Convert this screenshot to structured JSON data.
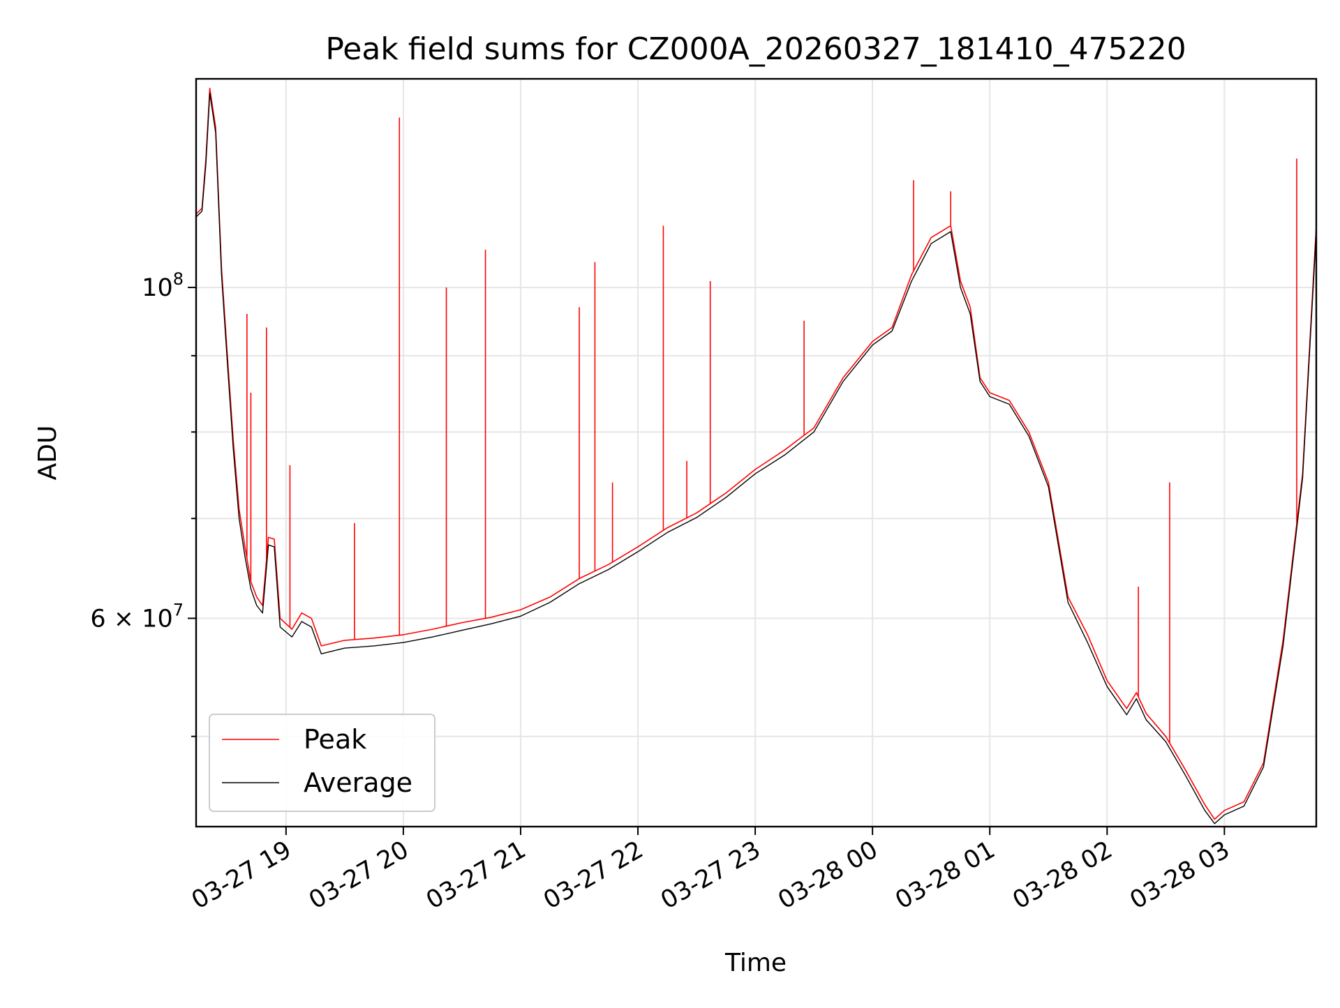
{
  "chart_data": {
    "type": "line",
    "title": "Peak field sums for CZ000A_20260327_181410_475220",
    "xlabel": "Time",
    "ylabel": "ADU",
    "y_scale": "log",
    "ylim": [
      43500000,
      138000000
    ],
    "xlim": [
      "2026-03-27 18:14",
      "2026-03-28 03:47"
    ],
    "grid": true,
    "legend_position": "lower-left",
    "x_ticks": [
      {
        "time": "2026-03-27 19:00",
        "label": "03-27 19"
      },
      {
        "time": "2026-03-27 20:00",
        "label": "03-27 20"
      },
      {
        "time": "2026-03-27 21:00",
        "label": "03-27 21"
      },
      {
        "time": "2026-03-27 22:00",
        "label": "03-27 22"
      },
      {
        "time": "2026-03-27 23:00",
        "label": "03-27 23"
      },
      {
        "time": "2026-03-28 00:00",
        "label": "03-28 00"
      },
      {
        "time": "2026-03-28 01:00",
        "label": "03-28 01"
      },
      {
        "time": "2026-03-28 02:00",
        "label": "03-28 02"
      },
      {
        "time": "2026-03-28 03:00",
        "label": "03-28 03"
      }
    ],
    "y_major_ticks": [
      {
        "value": 60000000,
        "base": "6 × 10",
        "exp": "7"
      },
      {
        "value": 100000000,
        "base": "10",
        "exp": "8"
      }
    ],
    "y_minor_ticks": [
      50000000,
      70000000,
      80000000,
      90000000
    ],
    "series": [
      {
        "name": "Peak",
        "color": "#ff0000",
        "points": [
          [
            "2026-03-27 18:14",
            112000000
          ],
          [
            "2026-03-27 18:17",
            113000000
          ],
          [
            "2026-03-27 18:19",
            122000000
          ],
          [
            "2026-03-27 18:21",
            136000000
          ],
          [
            "2026-03-27 18:24",
            128000000
          ],
          [
            "2026-03-27 18:27",
            103000000
          ],
          [
            "2026-03-27 18:30",
            90000000
          ],
          [
            "2026-03-27 18:33",
            79000000
          ],
          [
            "2026-03-27 18:36",
            71000000
          ],
          [
            "2026-03-27 18:39",
            67000000
          ],
          [
            "2026-03-27 18:42",
            63500000
          ],
          [
            "2026-03-27 18:45",
            62000000
          ],
          [
            "2026-03-27 18:48",
            61200000
          ],
          [
            "2026-03-27 18:51",
            68000000
          ],
          [
            "2026-03-27 18:54",
            67800000
          ],
          [
            "2026-03-27 18:57",
            60000000
          ],
          [
            "2026-03-27 19:03",
            59000000
          ],
          [
            "2026-03-27 19:08",
            60500000
          ],
          [
            "2026-03-27 19:13",
            60000000
          ],
          [
            "2026-03-27 19:18",
            57500000
          ],
          [
            "2026-03-27 19:30",
            58000000
          ],
          [
            "2026-03-27 19:45",
            58200000
          ],
          [
            "2026-03-27 20:00",
            58500000
          ],
          [
            "2026-03-27 20:15",
            59000000
          ],
          [
            "2026-03-27 20:30",
            59600000
          ],
          [
            "2026-03-27 20:45",
            60100000
          ],
          [
            "2026-03-27 21:00",
            60800000
          ],
          [
            "2026-03-27 21:15",
            62000000
          ],
          [
            "2026-03-27 21:30",
            63800000
          ],
          [
            "2026-03-27 21:45",
            65200000
          ],
          [
            "2026-03-27 22:00",
            67000000
          ],
          [
            "2026-03-27 22:15",
            69000000
          ],
          [
            "2026-03-27 22:30",
            70600000
          ],
          [
            "2026-03-27 22:45",
            72800000
          ],
          [
            "2026-03-27 23:00",
            75500000
          ],
          [
            "2026-03-27 23:15",
            77800000
          ],
          [
            "2026-03-27 23:30",
            80500000
          ],
          [
            "2026-03-27 23:45",
            87000000
          ],
          [
            "2026-03-28 00:00",
            92000000
          ],
          [
            "2026-03-28 00:10",
            94000000
          ],
          [
            "2026-03-28 00:20",
            102000000
          ],
          [
            "2026-03-28 00:30",
            108000000
          ],
          [
            "2026-03-28 00:40",
            110000000
          ],
          [
            "2026-03-28 00:45",
            101000000
          ],
          [
            "2026-03-28 00:50",
            97000000
          ],
          [
            "2026-03-28 00:55",
            87000000
          ],
          [
            "2026-03-28 01:00",
            85000000
          ],
          [
            "2026-03-28 01:10",
            84000000
          ],
          [
            "2026-03-28 01:20",
            80000000
          ],
          [
            "2026-03-28 01:30",
            74000000
          ],
          [
            "2026-03-28 01:40",
            62000000
          ],
          [
            "2026-03-28 01:50",
            58500000
          ],
          [
            "2026-03-28 02:00",
            54500000
          ],
          [
            "2026-03-28 02:10",
            52200000
          ],
          [
            "2026-03-28 02:15",
            53500000
          ],
          [
            "2026-03-28 02:20",
            51800000
          ],
          [
            "2026-03-28 02:30",
            50000000
          ],
          [
            "2026-03-28 02:40",
            47500000
          ],
          [
            "2026-03-28 02:50",
            45000000
          ],
          [
            "2026-03-28 02:55",
            44000000
          ],
          [
            "2026-03-28 03:00",
            44600000
          ],
          [
            "2026-03-28 03:10",
            45200000
          ],
          [
            "2026-03-28 03:20",
            48000000
          ],
          [
            "2026-03-28 03:30",
            58000000
          ],
          [
            "2026-03-28 03:40",
            75000000
          ],
          [
            "2026-03-28 03:47",
            110000000
          ]
        ],
        "spikes": [
          [
            "2026-03-27 18:40",
            96000000
          ],
          [
            "2026-03-27 18:42",
            85000000
          ],
          [
            "2026-03-27 18:50",
            94000000
          ],
          [
            "2026-03-27 19:02",
            76000000
          ],
          [
            "2026-03-27 19:35",
            69500000
          ],
          [
            "2026-03-27 19:58",
            130000000
          ],
          [
            "2026-03-27 20:22",
            100000000
          ],
          [
            "2026-03-27 20:42",
            106000000
          ],
          [
            "2026-03-27 21:30",
            97000000
          ],
          [
            "2026-03-27 21:38",
            104000000
          ],
          [
            "2026-03-27 21:47",
            74000000
          ],
          [
            "2026-03-27 22:13",
            110000000
          ],
          [
            "2026-03-27 22:25",
            76500000
          ],
          [
            "2026-03-27 22:37",
            101000000
          ],
          [
            "2026-03-27 23:25",
            95000000
          ],
          [
            "2026-03-28 00:21",
            118000000
          ],
          [
            "2026-03-28 00:40",
            116000000
          ],
          [
            "2026-03-28 02:16",
            63000000
          ],
          [
            "2026-03-28 02:32",
            74000000
          ],
          [
            "2026-03-28 03:37",
            122000000
          ]
        ]
      },
      {
        "name": "Average",
        "color": "#000000",
        "points": [
          [
            "2026-03-27 18:14",
            111500000
          ],
          [
            "2026-03-27 18:17",
            112500000
          ],
          [
            "2026-03-27 18:19",
            121000000
          ],
          [
            "2026-03-27 18:21",
            135000000
          ],
          [
            "2026-03-27 18:24",
            127000000
          ],
          [
            "2026-03-27 18:27",
            102000000
          ],
          [
            "2026-03-27 18:30",
            89000000
          ],
          [
            "2026-03-27 18:33",
            78000000
          ],
          [
            "2026-03-27 18:36",
            70000000
          ],
          [
            "2026-03-27 18:39",
            66000000
          ],
          [
            "2026-03-27 18:42",
            62800000
          ],
          [
            "2026-03-27 18:45",
            61200000
          ],
          [
            "2026-03-27 18:48",
            60500000
          ],
          [
            "2026-03-27 18:51",
            67200000
          ],
          [
            "2026-03-27 18:54",
            67000000
          ],
          [
            "2026-03-27 18:57",
            59200000
          ],
          [
            "2026-03-27 19:03",
            58300000
          ],
          [
            "2026-03-27 19:08",
            59700000
          ],
          [
            "2026-03-27 19:13",
            59200000
          ],
          [
            "2026-03-27 19:18",
            56800000
          ],
          [
            "2026-03-27 19:30",
            57300000
          ],
          [
            "2026-03-27 19:45",
            57500000
          ],
          [
            "2026-03-27 20:00",
            57800000
          ],
          [
            "2026-03-27 20:15",
            58300000
          ],
          [
            "2026-03-27 20:30",
            58900000
          ],
          [
            "2026-03-27 20:45",
            59500000
          ],
          [
            "2026-03-27 21:00",
            60200000
          ],
          [
            "2026-03-27 21:15",
            61500000
          ],
          [
            "2026-03-27 21:30",
            63300000
          ],
          [
            "2026-03-27 21:45",
            64700000
          ],
          [
            "2026-03-27 22:00",
            66500000
          ],
          [
            "2026-03-27 22:15",
            68500000
          ],
          [
            "2026-03-27 22:30",
            70100000
          ],
          [
            "2026-03-27 22:45",
            72300000
          ],
          [
            "2026-03-27 23:00",
            75000000
          ],
          [
            "2026-03-27 23:15",
            77200000
          ],
          [
            "2026-03-27 23:30",
            80000000
          ],
          [
            "2026-03-27 23:45",
            86500000
          ],
          [
            "2026-03-28 00:00",
            91500000
          ],
          [
            "2026-03-28 00:10",
            93500000
          ],
          [
            "2026-03-28 00:20",
            101000000
          ],
          [
            "2026-03-28 00:30",
            107000000
          ],
          [
            "2026-03-28 00:40",
            109000000
          ],
          [
            "2026-03-28 00:45",
            100000000
          ],
          [
            "2026-03-28 00:50",
            96000000
          ],
          [
            "2026-03-28 00:55",
            86500000
          ],
          [
            "2026-03-28 01:00",
            84500000
          ],
          [
            "2026-03-28 01:10",
            83500000
          ],
          [
            "2026-03-28 01:20",
            79500000
          ],
          [
            "2026-03-28 01:30",
            73500000
          ],
          [
            "2026-03-28 01:40",
            61500000
          ],
          [
            "2026-03-28 01:50",
            57800000
          ],
          [
            "2026-03-28 02:00",
            54000000
          ],
          [
            "2026-03-28 02:10",
            51700000
          ],
          [
            "2026-03-28 02:15",
            53000000
          ],
          [
            "2026-03-28 02:20",
            51300000
          ],
          [
            "2026-03-28 02:30",
            49600000
          ],
          [
            "2026-03-28 02:40",
            47100000
          ],
          [
            "2026-03-28 02:50",
            44600000
          ],
          [
            "2026-03-28 02:55",
            43700000
          ],
          [
            "2026-03-28 03:00",
            44300000
          ],
          [
            "2026-03-28 03:10",
            44900000
          ],
          [
            "2026-03-28 03:20",
            47700000
          ],
          [
            "2026-03-28 03:30",
            57500000
          ],
          [
            "2026-03-28 03:40",
            74500000
          ],
          [
            "2026-03-28 03:47",
            109000000
          ]
        ]
      }
    ]
  }
}
